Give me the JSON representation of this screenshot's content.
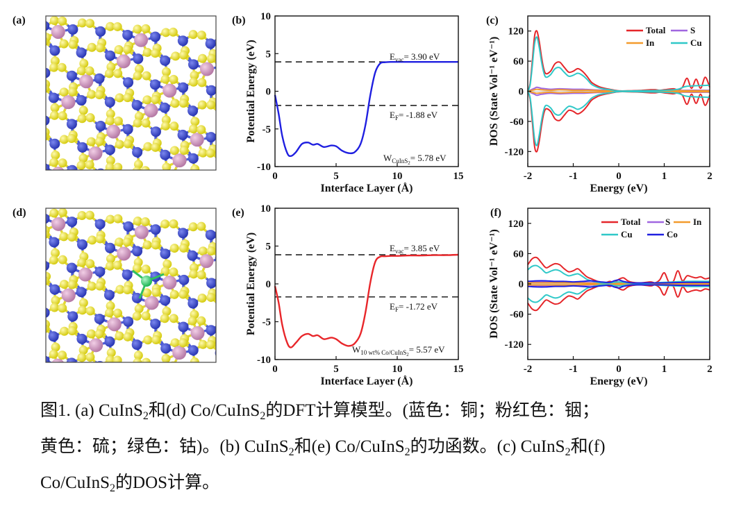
{
  "panels": {
    "a": {
      "label": "(a)"
    },
    "b": {
      "label": "(b)",
      "evac": "3.90 eV",
      "ef": "-1.88 eV",
      "w": "5.78 eV",
      "w_sub": "CuInS",
      "w_sub2": "2"
    },
    "c": {
      "label": "(c)"
    },
    "d": {
      "label": "(d)"
    },
    "e": {
      "label": "(e)",
      "evac": "3.85 eV",
      "ef": "-1.72 eV",
      "w": "5.57 eV",
      "w_sub": "10 wt% Co/CuInS",
      "w_sub2": "2"
    },
    "f": {
      "label": "(f)"
    }
  },
  "annotation_prefix": {
    "evac": "E",
    "evac_sub": "vac",
    "ef": "E",
    "ef_sub": "F",
    "w": "W",
    "eq": "= "
  },
  "legend": {
    "total": "Total",
    "s": "S",
    "in": "In",
    "cu": "Cu",
    "co": "Co"
  },
  "chart_data": [
    {
      "id": "b",
      "type": "line",
      "xlabel": "Interface Layer (Å)",
      "ylabel": "Potential Energy (eV)",
      "xlim": [
        0,
        15
      ],
      "ylim": [
        -10,
        10
      ],
      "xticks": [
        "0",
        "5",
        "10",
        "15"
      ],
      "yticks": [
        "-10",
        "-5",
        "0",
        "5",
        "10"
      ],
      "reference_lines": [
        {
          "name": "E_vac",
          "y": 3.9
        },
        {
          "name": "E_F",
          "y": -1.88
        }
      ],
      "series": [
        {
          "name": "CuInS2 potential",
          "color": "#1f1fe0",
          "x": [
            0,
            0.3,
            0.6,
            1.0,
            1.3,
            1.7,
            2.2,
            2.7,
            3.1,
            3.5,
            4.0,
            4.6,
            5.0,
            5.5,
            6.0,
            6.5,
            7.0,
            7.4,
            7.8,
            8.2,
            8.6,
            9.0,
            9.5,
            10,
            11,
            12,
            13,
            14,
            15
          ],
          "y": [
            -0.5,
            -3,
            -6,
            -8.2,
            -8.6,
            -8.1,
            -7.0,
            -6.8,
            -7.1,
            -7.0,
            -7.4,
            -7.2,
            -7.3,
            -7.9,
            -8.2,
            -8.1,
            -7.0,
            -4.5,
            -0.5,
            2.5,
            3.7,
            3.85,
            3.9,
            3.9,
            3.9,
            3.9,
            3.9,
            3.9,
            3.9
          ]
        }
      ]
    },
    {
      "id": "c",
      "type": "line",
      "xlabel": "Energy (eV)",
      "ylabel": "DOS (State Vol⁻¹ eV⁻¹)",
      "xlim": [
        -2,
        2
      ],
      "ylim": [
        -150,
        150
      ],
      "xticks": [
        "-2",
        "-1",
        "0",
        "1",
        "2"
      ],
      "yticks": [
        "-120",
        "-60",
        "0",
        "60",
        "120"
      ],
      "legend_position": "top-right",
      "series": [
        {
          "name": "Total",
          "color": "#e5262a",
          "x": [
            -2,
            -1.95,
            -1.9,
            -1.85,
            -1.8,
            -1.75,
            -1.7,
            -1.65,
            -1.6,
            -1.5,
            -1.4,
            -1.3,
            -1.2,
            -1.1,
            -1.0,
            -0.9,
            -0.8,
            -0.7,
            -0.6,
            -0.5,
            -0.4,
            -0.2,
            0,
            0.2,
            0.5,
            0.7,
            0.8,
            0.9,
            1.0,
            1.2,
            1.3,
            1.4,
            1.5,
            1.6,
            1.7,
            1.8,
            1.9,
            2.0
          ],
          "y": [
            0,
            15,
            60,
            110,
            120,
            100,
            70,
            45,
            35,
            40,
            55,
            58,
            48,
            38,
            40,
            45,
            40,
            30,
            18,
            12,
            8,
            4,
            1,
            1,
            2,
            3,
            3,
            2,
            3,
            5,
            3,
            8,
            26,
            6,
            24,
            6,
            28,
            8
          ]
        },
        {
          "name": "S",
          "color": "#a066e0",
          "x": [
            -2,
            -1.85,
            -1.8,
            -1.7,
            -1.5,
            -1.3,
            -1.0,
            -0.8,
            -0.6,
            -0.3,
            0,
            0.5,
            1,
            1.5,
            2
          ],
          "y": [
            0,
            6,
            8,
            6,
            4,
            5,
            4,
            4,
            3,
            2,
            0.5,
            1,
            1,
            2,
            2
          ]
        },
        {
          "name": "In",
          "color": "#f39a2c",
          "x": [
            -2,
            -1.85,
            -1.8,
            -1.7,
            -1.5,
            -1.3,
            -1.0,
            -0.8,
            -0.6,
            -0.3,
            0,
            0.5,
            1,
            1.5,
            2
          ],
          "y": [
            0,
            3,
            4,
            3,
            2,
            3,
            2,
            2,
            2,
            1,
            0.3,
            1,
            1,
            1,
            1
          ]
        },
        {
          "name": "Cu",
          "color": "#2fc8c8",
          "x": [
            -2,
            -1.95,
            -1.9,
            -1.85,
            -1.8,
            -1.75,
            -1.7,
            -1.65,
            -1.6,
            -1.5,
            -1.4,
            -1.3,
            -1.2,
            -1.1,
            -1.0,
            -0.9,
            -0.8,
            -0.7,
            -0.6,
            -0.5,
            -0.4,
            -0.2,
            0,
            0.2,
            0.5,
            1,
            1.3,
            1.5,
            2
          ],
          "y": [
            0,
            12,
            50,
            95,
            108,
            88,
            60,
            38,
            28,
            33,
            45,
            47,
            38,
            30,
            32,
            36,
            32,
            24,
            14,
            9,
            6,
            3,
            0.5,
            0.5,
            1,
            2,
            4,
            10,
            12
          ]
        }
      ],
      "mirror": true
    },
    {
      "id": "e",
      "type": "line",
      "xlabel": "Interface Layer (Å)",
      "ylabel": "Potential Energy (eV)",
      "xlim": [
        0,
        15
      ],
      "ylim": [
        -10,
        10
      ],
      "xticks": [
        "0",
        "5",
        "10",
        "15"
      ],
      "yticks": [
        "-10",
        "-5",
        "0",
        "5",
        "10"
      ],
      "reference_lines": [
        {
          "name": "E_vac",
          "y": 3.85
        },
        {
          "name": "E_F",
          "y": -1.72
        }
      ],
      "series": [
        {
          "name": "Co/CuInS2 potential",
          "color": "#e8262a",
          "x": [
            0,
            0.3,
            0.6,
            1.0,
            1.3,
            1.7,
            2.2,
            2.7,
            3.1,
            3.5,
            4.0,
            4.6,
            5.0,
            5.5,
            6.0,
            6.5,
            7.0,
            7.4,
            7.8,
            8.2,
            8.6,
            9.0,
            9.5,
            10,
            11,
            12,
            13,
            14,
            15
          ],
          "y": [
            -0.3,
            -2.5,
            -5.5,
            -7.8,
            -8.4,
            -7.8,
            -6.9,
            -6.6,
            -6.9,
            -6.8,
            -7.3,
            -7.1,
            -7.3,
            -7.9,
            -8.2,
            -7.9,
            -6.6,
            -3.8,
            0.2,
            2.9,
            3.6,
            3.65,
            3.7,
            3.7,
            3.75,
            3.75,
            3.8,
            3.8,
            3.85
          ]
        }
      ]
    },
    {
      "id": "f",
      "type": "line",
      "xlabel": "Energy (eV)",
      "ylabel": "DOS (State Vol⁻¹ eV⁻¹)",
      "xlim": [
        -2,
        2
      ],
      "ylim": [
        -150,
        150
      ],
      "xticks": [
        "-2",
        "-1",
        "0",
        "1",
        "2"
      ],
      "yticks": [
        "-120",
        "-60",
        "0",
        "60",
        "120"
      ],
      "legend_position": "top-right",
      "series": [
        {
          "name": "Total",
          "color": "#e5262a",
          "x": [
            -2,
            -1.9,
            -1.8,
            -1.7,
            -1.6,
            -1.5,
            -1.4,
            -1.3,
            -1.2,
            -1.1,
            -1.0,
            -0.9,
            -0.8,
            -0.7,
            -0.6,
            -0.5,
            -0.4,
            -0.3,
            -0.2,
            -0.1,
            0,
            0.1,
            0.2,
            0.3,
            0.5,
            0.7,
            0.8,
            0.9,
            1.0,
            1.1,
            1.2,
            1.3,
            1.4,
            1.5,
            1.6,
            1.7,
            1.8,
            1.9,
            2.0
          ],
          "y": [
            38,
            50,
            52,
            42,
            32,
            36,
            40,
            38,
            30,
            24,
            26,
            30,
            22,
            14,
            10,
            6,
            3,
            2,
            5,
            3,
            9,
            12,
            6,
            3,
            2,
            4,
            2,
            8,
            22,
            4,
            5,
            26,
            6,
            16,
            14,
            12,
            14,
            10,
            12
          ]
        },
        {
          "name": "S",
          "color": "#a066e0",
          "x": [
            -2,
            -1.5,
            -1,
            -0.5,
            0,
            0.5,
            1,
            1.5,
            2
          ],
          "y": [
            4,
            4,
            3,
            2,
            1,
            1,
            1,
            2,
            2
          ]
        },
        {
          "name": "In",
          "color": "#f39a2c",
          "x": [
            -2,
            -1.5,
            -1,
            -0.5,
            0,
            0.5,
            1,
            1.5,
            2
          ],
          "y": [
            2,
            2,
            2,
            1,
            1,
            1,
            1,
            1,
            1
          ]
        },
        {
          "name": "Cu",
          "color": "#2fc8c8",
          "x": [
            -2,
            -1.9,
            -1.8,
            -1.7,
            -1.6,
            -1.5,
            -1.4,
            -1.3,
            -1.2,
            -1.1,
            -1.0,
            -0.9,
            -0.8,
            -0.7,
            -0.6,
            -0.5,
            -0.4,
            -0.2,
            0,
            0.2,
            0.5,
            1,
            1.5,
            2
          ],
          "y": [
            28,
            35,
            36,
            30,
            22,
            25,
            28,
            26,
            20,
            16,
            18,
            20,
            15,
            9,
            6,
            4,
            2,
            2,
            4,
            2,
            1,
            3,
            5,
            5
          ]
        },
        {
          "name": "Co",
          "color": "#2020e0",
          "x": [
            -2,
            -1.8,
            -1.6,
            -1.4,
            -1.2,
            -1.0,
            -0.8,
            -0.6,
            -0.4,
            -0.2,
            -0.1,
            0,
            0.1,
            0.3,
            0.6,
            1,
            1.5,
            2
          ],
          "y": [
            5,
            6,
            6,
            5,
            5,
            4,
            5,
            6,
            4,
            3,
            6,
            8,
            5,
            2,
            2,
            2,
            3,
            3
          ]
        }
      ],
      "mirror": true
    }
  ],
  "caption": {
    "line1": {
      "a": "图1. (a) CuInS",
      "b": "和(d) Co/CuInS",
      "c": "的DFT计算模型。(蓝色：铜；粉红色：铟；"
    },
    "line2": {
      "a": "黄色：硫；绿色：钴)。(b) CuInS",
      "b": "和(e) Co/CuInS",
      "c": "的功函数。(c) CuInS",
      "d": "和(f)"
    },
    "line3": {
      "a": "Co/CuInS",
      "b": "的DOS计算。"
    },
    "sub2": "2"
  }
}
